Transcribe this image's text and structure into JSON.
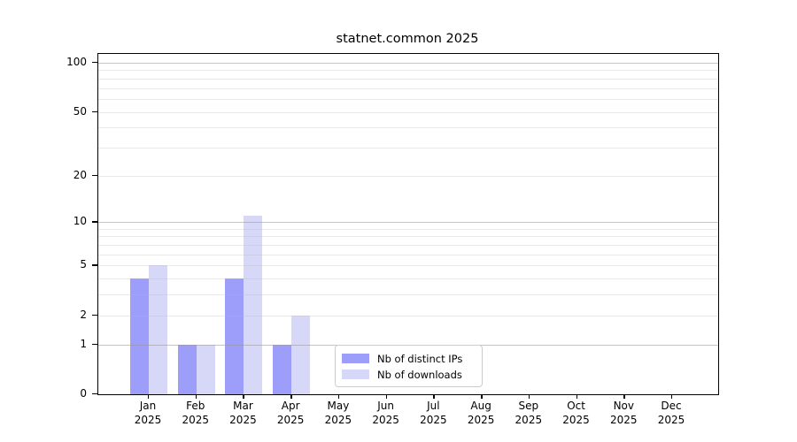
{
  "title": "statnet.common 2025",
  "chart_data": {
    "type": "bar",
    "title": "statnet.common 2025",
    "categories": [
      "Jan",
      "Feb",
      "Mar",
      "Apr",
      "May",
      "Jun",
      "Jul",
      "Aug",
      "Sep",
      "Oct",
      "Nov",
      "Dec"
    ],
    "category_year": "2025",
    "series": [
      {
        "name": "Nb of distinct IPs",
        "color": "#9d9dfa",
        "values": [
          4,
          1,
          4,
          1,
          0,
          0,
          0,
          0,
          0,
          0,
          0,
          0
        ]
      },
      {
        "name": "Nb of downloads",
        "color": "#d7d7f8",
        "values": [
          5,
          1,
          11,
          2,
          0,
          0,
          0,
          0,
          0,
          0,
          0,
          0
        ]
      }
    ],
    "xlabel": "",
    "ylabel": "",
    "yscale": "log1p",
    "ylim": [
      0,
      100
    ],
    "ytick_values": [
      0,
      1,
      2,
      5,
      10,
      20,
      50,
      100
    ],
    "major_grid_values": [
      1,
      10,
      100
    ],
    "minor_grid_values": [
      2,
      3,
      4,
      5,
      6,
      7,
      8,
      9,
      20,
      30,
      40,
      50,
      60,
      70,
      80,
      90
    ],
    "grid": true,
    "legend_position": "inside-bottom-center"
  }
}
